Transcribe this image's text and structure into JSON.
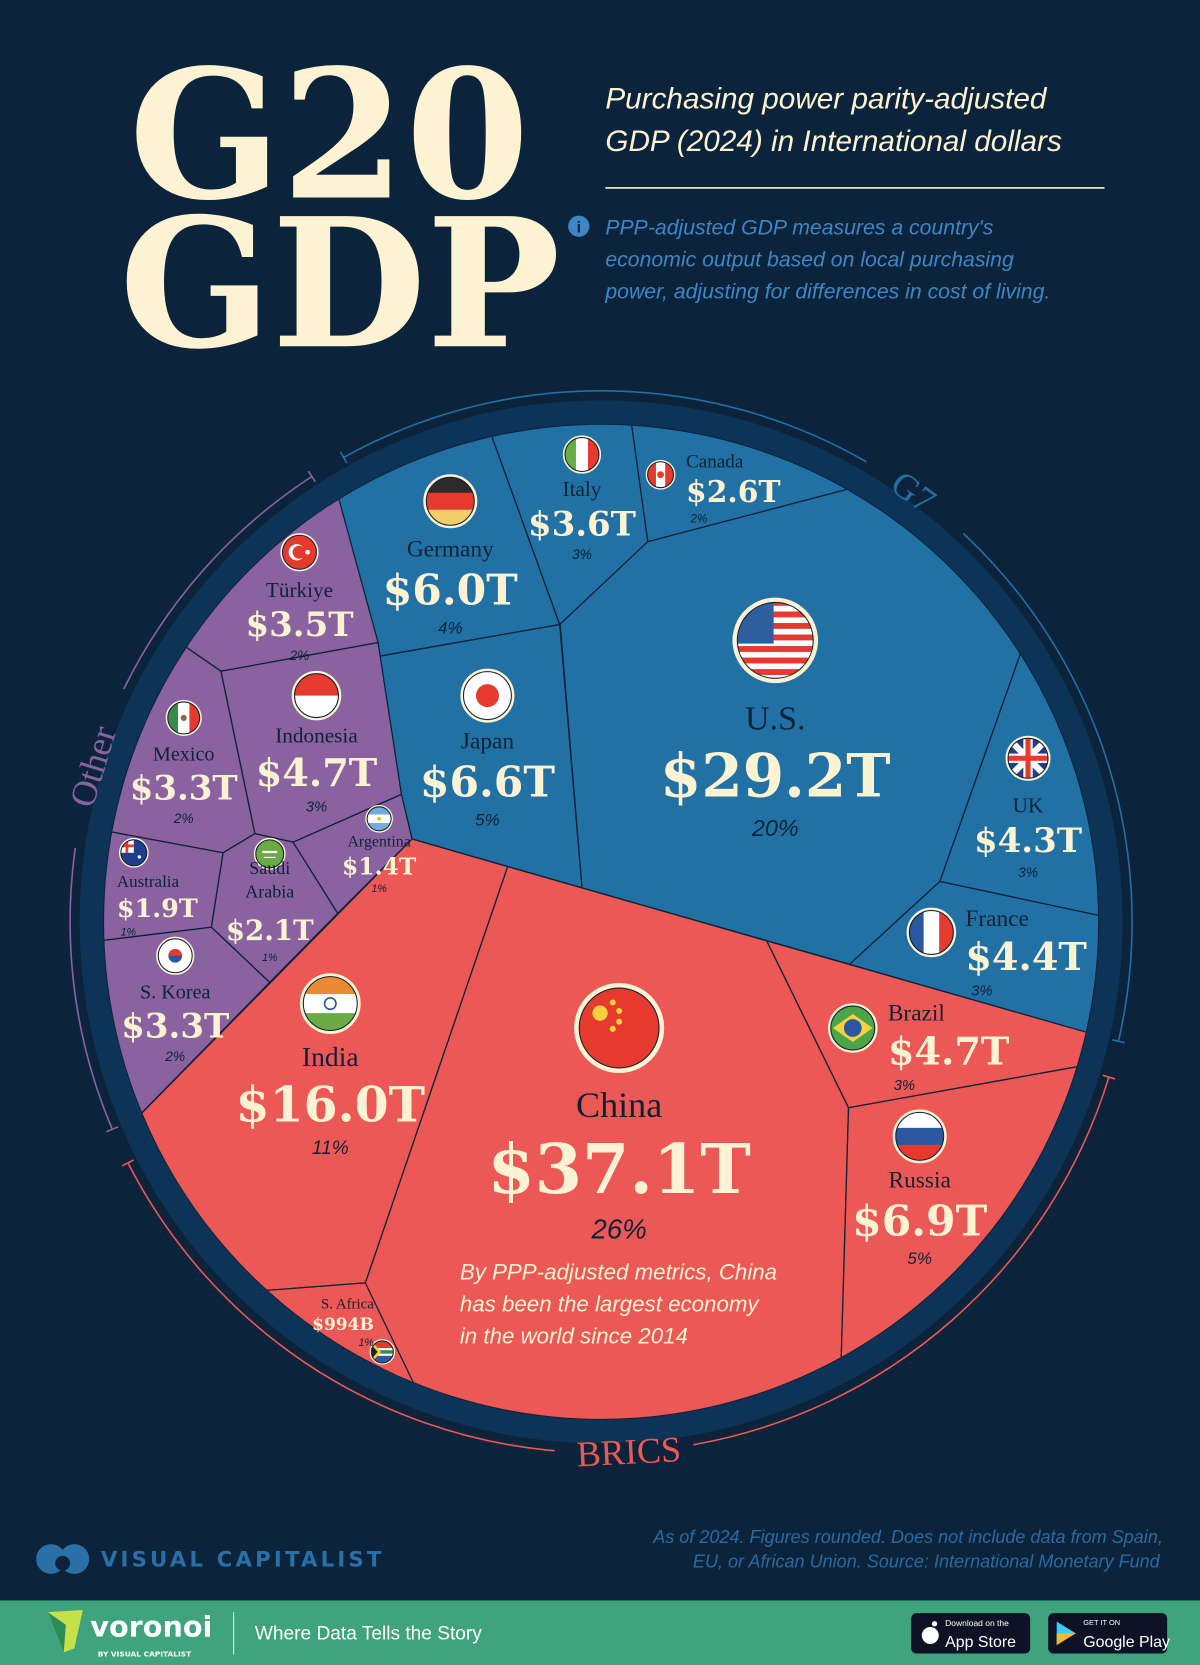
{
  "header": {
    "title_line1": "G20",
    "title_line2": "GDP",
    "subtitle_line1": "Purchasing power parity-adjusted",
    "subtitle_line2": "GDP (2024) in International dollars",
    "info_icon": "info-circle-icon",
    "info_line1": "PPP-adjusted GDP measures a country's",
    "info_line2": "economic output based on local purchasing",
    "info_line3": "power, adjusting for differences in cost of living."
  },
  "colors": {
    "background": "#0b243b",
    "g7": "#2271a5",
    "brics": "#ec5856",
    "other": "#8a62a0",
    "label_cream": "#fdf3d2",
    "label_dark": "#0e2236",
    "footer_band": "#3fa37e"
  },
  "chart_data": {
    "type": "treemap",
    "layout": "voronoi-circle",
    "unit": "International dollars (PPP), 2024",
    "groups": [
      {
        "name": "G7",
        "color": "#2271a5"
      },
      {
        "name": "BRICS",
        "color": "#ec5856"
      },
      {
        "name": "Other",
        "color": "#8a62a0"
      }
    ],
    "countries": [
      {
        "name": "U.S.",
        "value_label": "$29.2T",
        "value": 29.2,
        "pct": "20%",
        "group": "G7",
        "icon": "us-flag-icon"
      },
      {
        "name": "Japan",
        "value_label": "$6.6T",
        "value": 6.6,
        "pct": "5%",
        "group": "G7",
        "icon": "japan-flag-icon"
      },
      {
        "name": "Germany",
        "value_label": "$6.0T",
        "value": 6.0,
        "pct": "4%",
        "group": "G7",
        "icon": "germany-flag-icon"
      },
      {
        "name": "Italy",
        "value_label": "$3.6T",
        "value": 3.6,
        "pct": "3%",
        "group": "G7",
        "icon": "italy-flag-icon"
      },
      {
        "name": "Canada",
        "value_label": "$2.6T",
        "value": 2.6,
        "pct": "2%",
        "group": "G7",
        "icon": "canada-flag-icon"
      },
      {
        "name": "UK",
        "value_label": "$4.3T",
        "value": 4.3,
        "pct": "3%",
        "group": "G7",
        "icon": "uk-flag-icon"
      },
      {
        "name": "France",
        "value_label": "$4.4T",
        "value": 4.4,
        "pct": "3%",
        "group": "G7",
        "icon": "france-flag-icon"
      },
      {
        "name": "China",
        "value_label": "$37.1T",
        "value": 37.1,
        "pct": "26%",
        "group": "BRICS",
        "icon": "china-flag-icon"
      },
      {
        "name": "India",
        "value_label": "$16.0T",
        "value": 16.0,
        "pct": "11%",
        "group": "BRICS",
        "icon": "india-flag-icon"
      },
      {
        "name": "Russia",
        "value_label": "$6.9T",
        "value": 6.9,
        "pct": "5%",
        "group": "BRICS",
        "icon": "russia-flag-icon"
      },
      {
        "name": "Brazil",
        "value_label": "$4.7T",
        "value": 4.7,
        "pct": "3%",
        "group": "BRICS",
        "icon": "brazil-flag-icon"
      },
      {
        "name": "S. Africa",
        "value_label": "$994B",
        "value": 0.994,
        "pct": "1%",
        "group": "BRICS",
        "icon": "south-africa-flag-icon"
      },
      {
        "name": "Indonesia",
        "value_label": "$4.7T",
        "value": 4.7,
        "pct": "3%",
        "group": "Other",
        "icon": "indonesia-flag-icon"
      },
      {
        "name": "Türkiye",
        "value_label": "$3.5T",
        "value": 3.5,
        "pct": "2%",
        "group": "Other",
        "icon": "turkiye-flag-icon"
      },
      {
        "name": "Mexico",
        "value_label": "$3.3T",
        "value": 3.3,
        "pct": "2%",
        "group": "Other",
        "icon": "mexico-flag-icon"
      },
      {
        "name": "S. Korea",
        "value_label": "$3.3T",
        "value": 3.3,
        "pct": "2%",
        "group": "Other",
        "icon": "south-korea-flag-icon"
      },
      {
        "name": "Saudi Arabia",
        "name_lines": [
          "Saudi",
          "Arabia"
        ],
        "value_label": "$2.1T",
        "value": 2.1,
        "pct": "1%",
        "group": "Other",
        "icon": "saudi-arabia-flag-icon"
      },
      {
        "name": "Australia",
        "value_label": "$1.9T",
        "value": 1.9,
        "pct": "1%",
        "group": "Other",
        "icon": "australia-flag-icon"
      },
      {
        "name": "Argentina",
        "value_label": "$1.4T",
        "value": 1.4,
        "pct": "1%",
        "group": "Other",
        "icon": "argentina-flag-icon"
      }
    ],
    "annotation": {
      "line1": "By PPP-adjusted metrics, China",
      "line2": "has been the largest economy",
      "line3": "in the world since 2014"
    }
  },
  "footer": {
    "brand": "VISUAL CAPITALIST",
    "brand_icon": "visual-capitalist-logo-icon",
    "note_line1": "As of 2024. Figures rounded. Does not include data from Spain,",
    "note_line2": "EU, or African Union. Source: International Monetary Fund",
    "voronoi": "voronoi",
    "voronoi_by": "BY VISUAL CAPITALIST",
    "tagline": "Where Data Tells the Story",
    "app_store_small": "Download on the",
    "app_store": "App Store",
    "google_small": "GET IT ON",
    "google": "Google Play"
  }
}
